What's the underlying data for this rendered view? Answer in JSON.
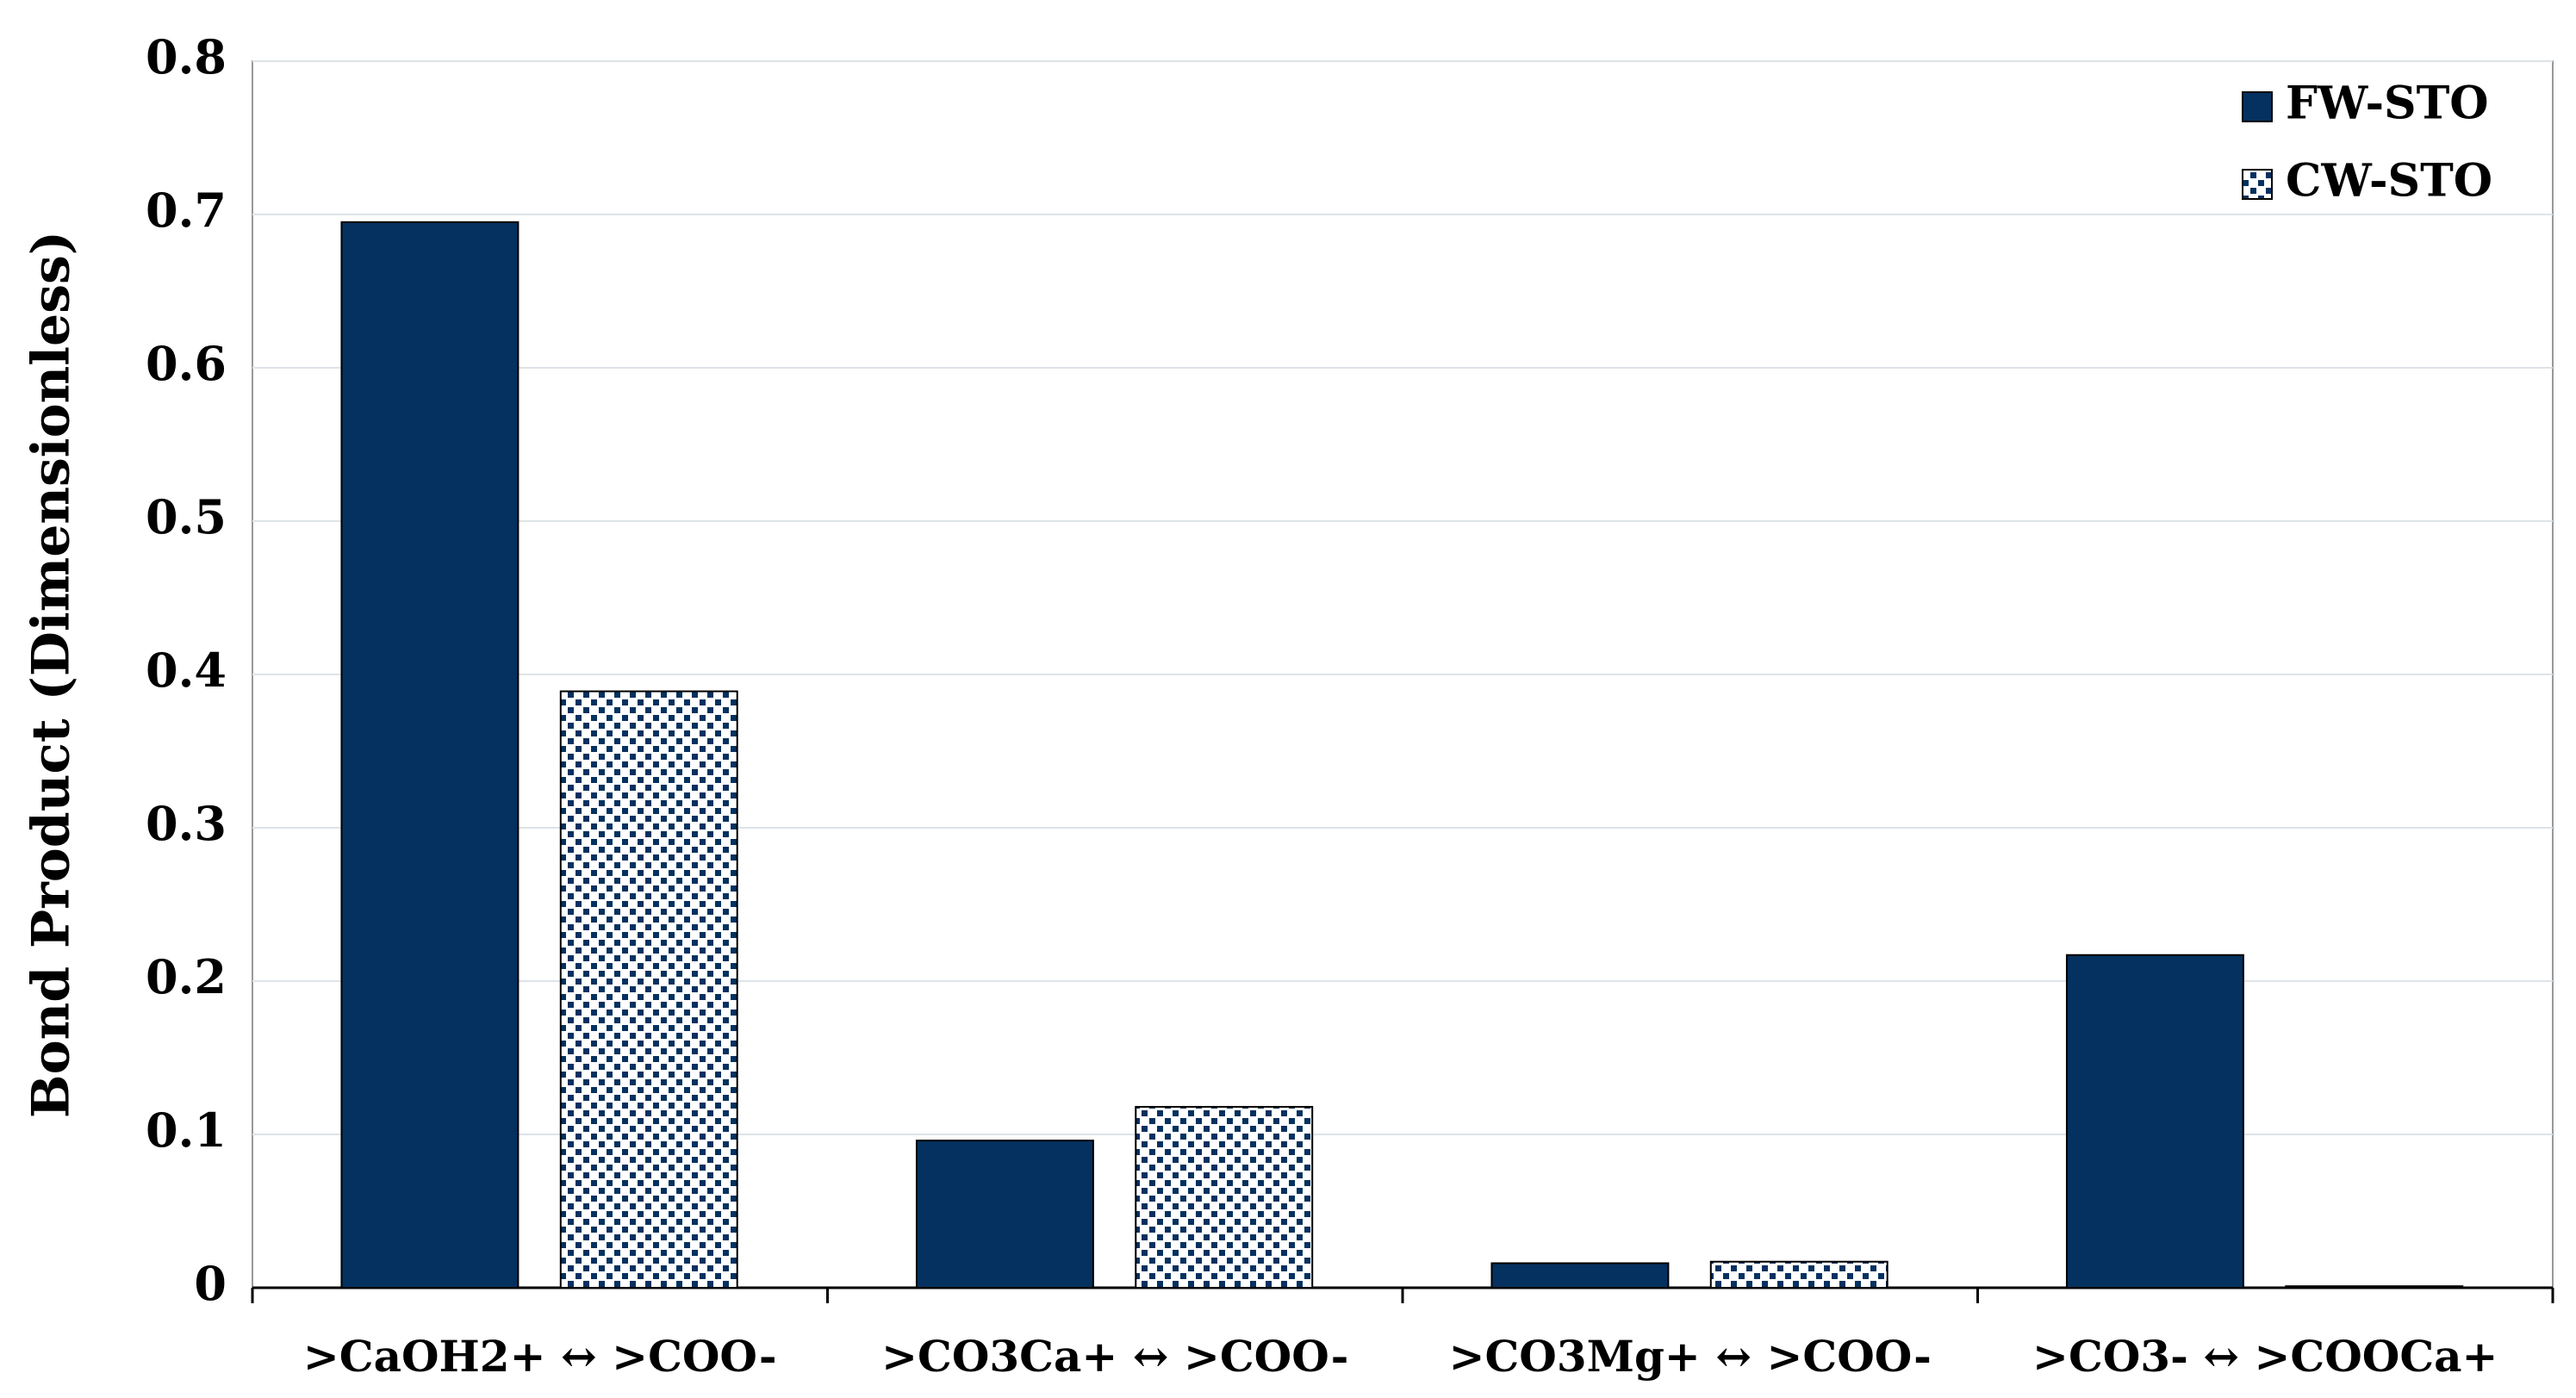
{
  "chart_data": {
    "type": "bar",
    "y_label": "Bond Product (Dimensionless)",
    "categories": [
      ">CaOH2+ ↔ >COO-",
      ">CO3Ca+ ↔ >COO-",
      ">CO3Mg+ ↔ >COO-",
      ">CO3- ↔ >COOCa+"
    ],
    "series": [
      {
        "name": "FW-STO",
        "color": "#04315f",
        "pattern": "solid",
        "values": [
          0.695,
          0.096,
          0.016,
          0.217
        ]
      },
      {
        "name": "CW-STO",
        "color": "#04315f",
        "pattern": "checker",
        "values": [
          0.389,
          0.118,
          0.017,
          0.001
        ]
      }
    ],
    "ylim": [
      0,
      0.8
    ],
    "yticks": [
      0,
      0.1,
      0.2,
      0.3,
      0.4,
      0.5,
      0.6,
      0.7,
      0.8
    ],
    "grid": true,
    "legend": "top-right"
  }
}
